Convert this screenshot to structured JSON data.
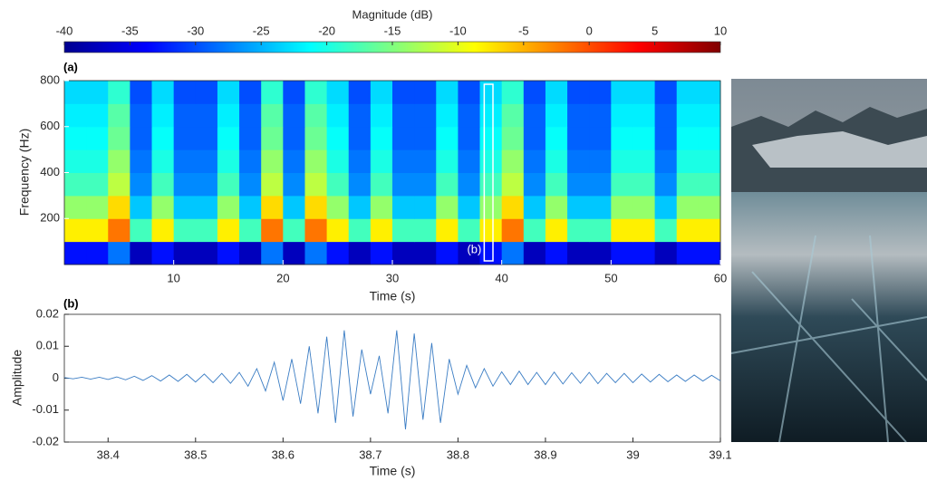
{
  "chart_data": [
    {
      "type": "heatmap",
      "panel": "(a)",
      "colorbar_label": "Magnitude (dB)",
      "clim": [
        -40,
        10
      ],
      "cticks": [
        -40,
        -35,
        -30,
        -25,
        -20,
        -15,
        -10,
        -5,
        0,
        5,
        10
      ],
      "xlabel": "Time (s)",
      "ylabel": "Frequency (Hz)",
      "xlim": [
        0,
        60
      ],
      "ylim": [
        0,
        800
      ],
      "xticks": [
        10,
        20,
        30,
        40,
        50,
        60
      ],
      "yticks": [
        200,
        400,
        600,
        800
      ],
      "x_edges": [
        0,
        2,
        4,
        6,
        8,
        10,
        12,
        14,
        16,
        18,
        20,
        22,
        24,
        26,
        28,
        30,
        32,
        34,
        36,
        38,
        40,
        42,
        44,
        46,
        48,
        50,
        52,
        54,
        56,
        58,
        60
      ],
      "y_edges": [
        0,
        100,
        200,
        300,
        400,
        500,
        600,
        700,
        800
      ],
      "z": [
        [
          -33,
          -33,
          -28,
          -37,
          -33,
          -37,
          -37,
          -33,
          -37,
          -28,
          -37,
          -28,
          -33,
          -37,
          -33,
          -37,
          -37,
          -33,
          -37,
          -33,
          -28,
          -37,
          -33,
          -37,
          -37,
          -33,
          -33,
          -37,
          -33,
          -33
        ],
        [
          -8,
          -8,
          -2,
          -18,
          -8,
          -18,
          -18,
          -8,
          -18,
          -2,
          -18,
          -2,
          -8,
          -18,
          -8,
          -18,
          -18,
          -8,
          -18,
          -8,
          -2,
          -18,
          -8,
          -18,
          -18,
          -8,
          -8,
          -18,
          -8,
          -8
        ],
        [
          -14,
          -14,
          -7,
          -24,
          -14,
          -24,
          -24,
          -14,
          -24,
          -7,
          -24,
          -7,
          -14,
          -24,
          -14,
          -24,
          -24,
          -14,
          -24,
          -14,
          -7,
          -24,
          -14,
          -24,
          -24,
          -14,
          -14,
          -24,
          -14,
          -14
        ],
        [
          -18,
          -18,
          -12,
          -27,
          -18,
          -27,
          -27,
          -18,
          -27,
          -12,
          -27,
          -12,
          -18,
          -27,
          -18,
          -27,
          -27,
          -18,
          -27,
          -18,
          -12,
          -27,
          -18,
          -27,
          -27,
          -18,
          -18,
          -27,
          -18,
          -18
        ],
        [
          -20,
          -20,
          -14,
          -28,
          -20,
          -28,
          -28,
          -20,
          -28,
          -14,
          -28,
          -14,
          -20,
          -28,
          -20,
          -28,
          -28,
          -20,
          -28,
          -20,
          -14,
          -28,
          -20,
          -28,
          -28,
          -20,
          -20,
          -28,
          -20,
          -20
        ],
        [
          -21,
          -21,
          -16,
          -29,
          -21,
          -29,
          -29,
          -21,
          -29,
          -16,
          -29,
          -16,
          -21,
          -29,
          -21,
          -29,
          -29,
          -21,
          -29,
          -21,
          -16,
          -29,
          -21,
          -29,
          -29,
          -21,
          -21,
          -29,
          -21,
          -21
        ],
        [
          -22,
          -22,
          -17,
          -29,
          -22,
          -29,
          -29,
          -22,
          -29,
          -17,
          -29,
          -17,
          -22,
          -29,
          -22,
          -29,
          -29,
          -22,
          -29,
          -22,
          -17,
          -29,
          -22,
          -29,
          -29,
          -22,
          -22,
          -29,
          -22,
          -22
        ],
        [
          -23,
          -23,
          -19,
          -30,
          -23,
          -30,
          -30,
          -23,
          -30,
          -19,
          -30,
          -19,
          -23,
          -30,
          -23,
          -30,
          -30,
          -23,
          -30,
          -23,
          -19,
          -30,
          -23,
          -30,
          -30,
          -23,
          -23,
          -30,
          -23,
          -23
        ]
      ],
      "annotation": {
        "text": "(b)",
        "x": [
          38.4,
          39.2
        ]
      }
    },
    {
      "type": "line",
      "panel": "(b)",
      "xlabel": "Time (s)",
      "ylabel": "Amplitude",
      "xlim": [
        38.35,
        39.1
      ],
      "ylim": [
        -0.02,
        0.02
      ],
      "xticks": [
        38.4,
        38.5,
        38.6,
        38.7,
        38.8,
        38.9,
        39,
        39.1
      ],
      "yticks": [
        -0.02,
        -0.01,
        0,
        0.01,
        0.02
      ],
      "x": [
        38.35,
        38.36,
        38.37,
        38.38,
        38.39,
        38.4,
        38.41,
        38.42,
        38.43,
        38.44,
        38.45,
        38.46,
        38.47,
        38.48,
        38.49,
        38.5,
        38.51,
        38.52,
        38.53,
        38.54,
        38.55,
        38.56,
        38.57,
        38.58,
        38.59,
        38.6,
        38.61,
        38.62,
        38.63,
        38.64,
        38.65,
        38.66,
        38.67,
        38.68,
        38.69,
        38.7,
        38.71,
        38.72,
        38.73,
        38.74,
        38.75,
        38.76,
        38.77,
        38.78,
        38.79,
        38.8,
        38.81,
        38.82,
        38.83,
        38.84,
        38.85,
        38.86,
        38.87,
        38.88,
        38.89,
        38.9,
        38.91,
        38.92,
        38.93,
        38.94,
        38.95,
        38.96,
        38.97,
        38.98,
        38.99,
        39,
        39.01,
        39.02,
        39.03,
        39.04,
        39.05,
        39.06,
        39.07,
        39.08,
        39.09,
        39.1
      ],
      "series": [
        {
          "color": "#3b7dc4",
          "values": [
            0.0002,
            -0.0002,
            0.0003,
            -0.0003,
            0.0003,
            -0.0004,
            0.0004,
            -0.0005,
            0.0006,
            -0.0007,
            0.0008,
            -0.0009,
            0.001,
            -0.001,
            0.0012,
            -0.0012,
            0.0013,
            -0.0014,
            0.0015,
            -0.0016,
            0.0018,
            -0.0025,
            0.003,
            -0.004,
            0.005,
            -0.007,
            0.006,
            -0.008,
            0.01,
            -0.011,
            0.013,
            -0.014,
            0.015,
            -0.012,
            0.009,
            -0.005,
            0.007,
            -0.011,
            0.015,
            -0.016,
            0.014,
            -0.013,
            0.011,
            -0.014,
            0.006,
            -0.005,
            0.004,
            -0.003,
            0.003,
            -0.0025,
            0.002,
            -0.002,
            0.0022,
            -0.002,
            0.0018,
            -0.002,
            0.0019,
            -0.0018,
            0.0017,
            -0.0016,
            0.0018,
            -0.0017,
            0.0015,
            -0.0014,
            0.0015,
            -0.0014,
            0.0013,
            -0.0012,
            0.0012,
            -0.0011,
            0.001,
            -0.001,
            0.001,
            -0.0009,
            0.0009,
            -0.0008
          ]
        }
      ]
    }
  ]
}
